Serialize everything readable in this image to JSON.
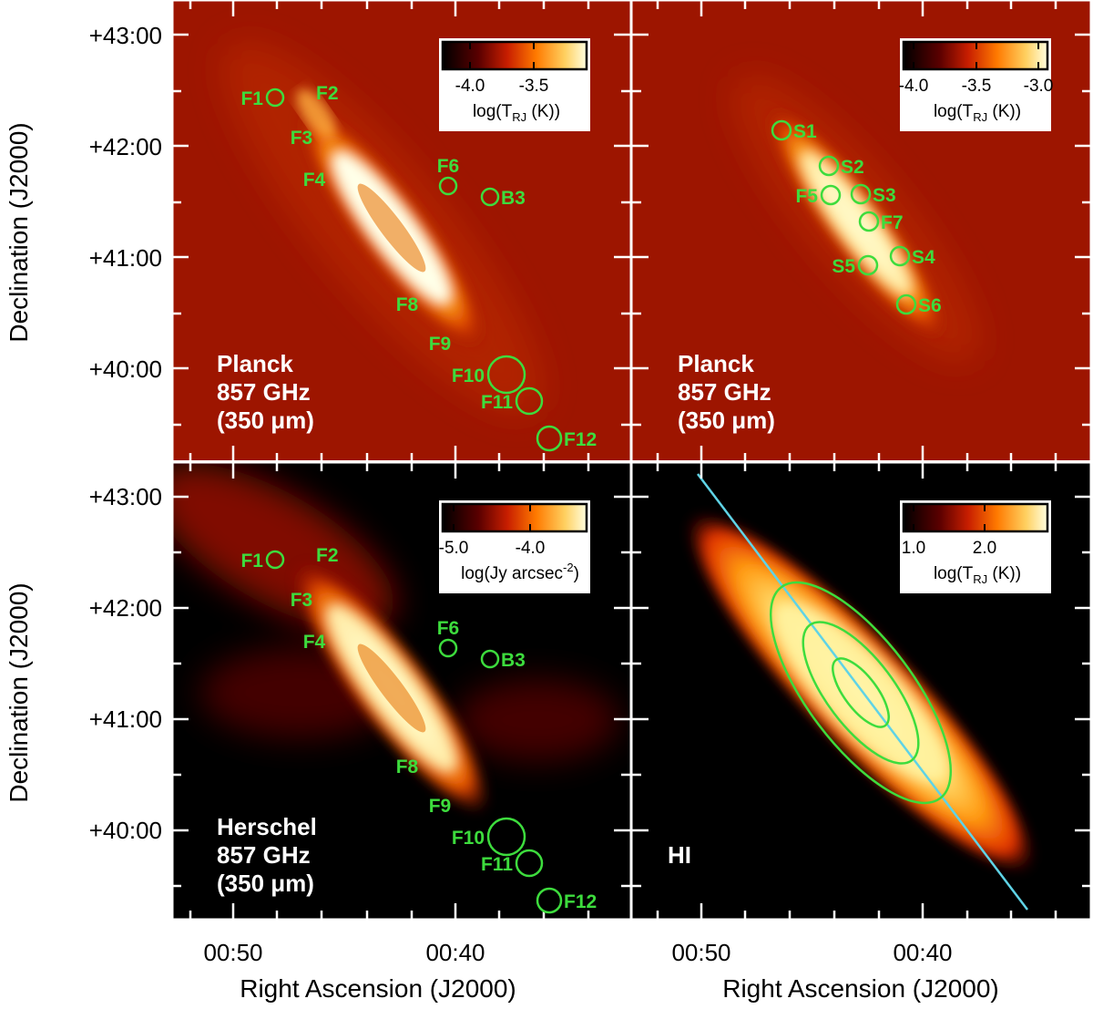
{
  "axes": {
    "ylabel": "Declination (J2000)",
    "xlabel": "Right Ascension (J2000)",
    "yticks": [
      "+43:00",
      "+42:00",
      "+41:00",
      "+40:00"
    ],
    "xticks": [
      "00:50",
      "00:40"
    ]
  },
  "panels": [
    {
      "id": "tl",
      "label_lines": [
        "Planck",
        "857 GHz",
        "(350 μm)"
      ],
      "colorbar": {
        "ticks": [
          "-4.0",
          "-3.5"
        ],
        "title": "log(T",
        "title_sub": "RJ",
        "title_tail": " (K))"
      },
      "sources": [
        {
          "name": "F1",
          "r": 9,
          "label_side": "left"
        },
        {
          "name": "F2",
          "r": 0,
          "label_side": "right"
        },
        {
          "name": "F3",
          "r": 0,
          "label_side": "left"
        },
        {
          "name": "F4",
          "r": 0,
          "label_side": "left"
        },
        {
          "name": "F6",
          "r": 9,
          "label_side": "top"
        },
        {
          "name": "B3",
          "r": 9,
          "label_side": "right"
        },
        {
          "name": "F8",
          "r": 0,
          "label_side": "left"
        },
        {
          "name": "F9",
          "r": 0,
          "label_side": "left"
        },
        {
          "name": "F10",
          "r": 20,
          "label_side": "left"
        },
        {
          "name": "F11",
          "r": 14,
          "label_side": "left"
        },
        {
          "name": "F12",
          "r": 13,
          "label_side": "right"
        }
      ]
    },
    {
      "id": "tr",
      "label_lines": [
        "Planck",
        "857 GHz",
        "(350 μm)"
      ],
      "colorbar": {
        "ticks": [
          "-4.0",
          "-3.5",
          "-3.0"
        ],
        "title": "log(T",
        "title_sub": "RJ",
        "title_tail": " (K))"
      },
      "sources": [
        {
          "name": "S1",
          "r": 10,
          "label_side": "right"
        },
        {
          "name": "S2",
          "r": 10,
          "label_side": "right"
        },
        {
          "name": "F5",
          "r": 10,
          "label_side": "left"
        },
        {
          "name": "S3",
          "r": 10,
          "label_side": "right"
        },
        {
          "name": "F7",
          "r": 10,
          "label_side": "right"
        },
        {
          "name": "S4",
          "r": 10,
          "label_side": "right"
        },
        {
          "name": "S5",
          "r": 10,
          "label_side": "left"
        },
        {
          "name": "S6",
          "r": 10,
          "label_side": "right"
        }
      ]
    },
    {
      "id": "bl",
      "label_lines": [
        "Herschel",
        "857 GHz",
        "(350 μm)"
      ],
      "colorbar": {
        "ticks": [
          "-5.0",
          "-4.0"
        ],
        "title": "log(Jy arcsec",
        "title_sup": "-2",
        "title_tail": ")"
      },
      "sources": [
        {
          "name": "F1",
          "r": 9,
          "label_side": "left"
        },
        {
          "name": "F2",
          "r": 0,
          "label_side": "right"
        },
        {
          "name": "F3",
          "r": 0,
          "label_side": "left"
        },
        {
          "name": "F4",
          "r": 0,
          "label_side": "left"
        },
        {
          "name": "F6",
          "r": 9,
          "label_side": "top"
        },
        {
          "name": "B3",
          "r": 9,
          "label_side": "right"
        },
        {
          "name": "F8",
          "r": 0,
          "label_side": "left"
        },
        {
          "name": "F9",
          "r": 0,
          "label_side": "left"
        },
        {
          "name": "F10",
          "r": 20,
          "label_side": "left"
        },
        {
          "name": "F11",
          "r": 14,
          "label_side": "left"
        },
        {
          "name": "F12",
          "r": 13,
          "label_side": "right"
        }
      ]
    },
    {
      "id": "br",
      "label_lines": [
        "HI"
      ],
      "colorbar": {
        "ticks": [
          "1.0",
          "2.0"
        ],
        "title": "log(T",
        "title_sub": "RJ",
        "title_tail": " (K))"
      },
      "sources": []
    }
  ],
  "colors": {
    "source": "#3ddc3d",
    "major_axis_line": "#5fd3e6",
    "ellipse": "#3ddc3d",
    "background": "#000000"
  }
}
